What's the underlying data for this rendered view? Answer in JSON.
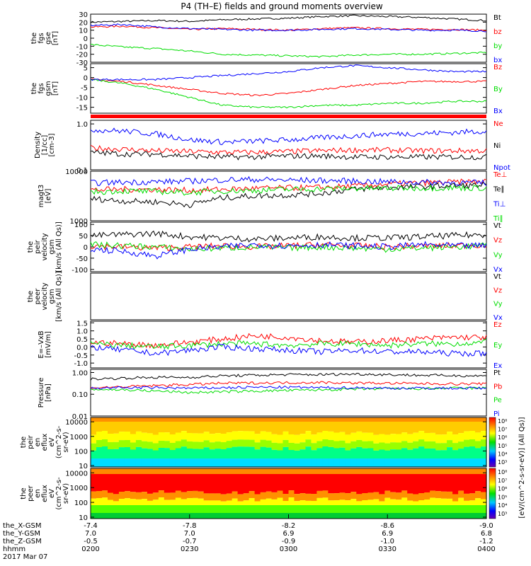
{
  "title": "P4 (TH–E) fields and ground moments overview",
  "colors": {
    "black": "#000000",
    "red": "#ff0000",
    "green": "#00dd00",
    "blue": "#0000ff"
  },
  "chart_data": [
    {
      "id": "fgs-gse",
      "type": "line",
      "ylabel": [
        "the",
        "fgs",
        "gse",
        "[nT]"
      ],
      "ylim": [
        -30,
        30
      ],
      "scale": "linear",
      "ticks": [
        "30",
        "20",
        "10",
        "0",
        "-10",
        "-20",
        "-30"
      ],
      "tick_values": [
        30,
        20,
        10,
        0,
        -10,
        -20,
        -30
      ],
      "series": [
        {
          "name": "Bt",
          "color": "black",
          "values": [
            20,
            21,
            22,
            21,
            23,
            24,
            25,
            27,
            28,
            27,
            26,
            24,
            22
          ]
        },
        {
          "name": "bz",
          "color": "red",
          "values": [
            14,
            15,
            13,
            11,
            12,
            11,
            10,
            12,
            13,
            12,
            11,
            11,
            10
          ]
        },
        {
          "name": "by",
          "color": "green",
          "values": [
            -8,
            -11,
            -13,
            -16,
            -20,
            -21,
            -22,
            -23,
            -21,
            -20,
            -20,
            -19,
            -18
          ]
        },
        {
          "name": "bx",
          "color": "blue",
          "values": [
            16,
            17,
            14,
            12,
            11,
            10,
            10,
            11,
            12,
            11,
            10,
            10,
            9
          ]
        }
      ]
    },
    {
      "id": "fgs-gsm",
      "type": "line",
      "ylabel": [
        "the",
        "fgs",
        "gsm",
        "[nT]"
      ],
      "ylim": [
        -18,
        7
      ],
      "scale": "linear",
      "ticks": [
        "5",
        "0",
        "-5",
        "-10",
        "-15"
      ],
      "tick_values": [
        5,
        0,
        -5,
        -10,
        -15
      ],
      "series": [
        {
          "name": "Bz",
          "color": "red",
          "values": [
            -1,
            -2,
            -4,
            -6,
            -8,
            -9,
            -8,
            -6,
            -4,
            -3,
            -2,
            -2,
            -2
          ]
        },
        {
          "name": "By",
          "color": "green",
          "values": [
            -1,
            -3,
            -6,
            -10,
            -14,
            -15,
            -15,
            -14,
            -14,
            -13,
            -13,
            -12,
            -12
          ]
        },
        {
          "name": "Bx",
          "color": "blue",
          "values": [
            -1,
            -1,
            -1,
            0,
            1,
            2,
            3,
            5,
            6,
            5,
            4,
            3,
            3
          ]
        }
      ]
    },
    {
      "id": "density",
      "type": "line",
      "ylabel": [
        "Density",
        "[1/cc]",
        "[cm-3]"
      ],
      "ylim": [
        0.1,
        1.2
      ],
      "scale": "log",
      "ticks": [
        "1.0",
        "0.1"
      ],
      "tick_values": [
        1.0,
        0.1
      ],
      "series": [
        {
          "name": "Ne",
          "color": "red",
          "values": [
            0.3,
            0.28,
            0.26,
            0.25,
            0.24,
            0.24,
            0.25,
            0.26,
            0.27,
            0.27,
            0.26,
            0.26,
            0.26
          ]
        },
        {
          "name": "Ni",
          "color": "black",
          "values": [
            0.24,
            0.22,
            0.22,
            0.2,
            0.19,
            0.19,
            0.2,
            0.2,
            0.19,
            0.19,
            0.19,
            0.19,
            0.19
          ]
        },
        {
          "name": "Npot",
          "color": "blue",
          "values": [
            0.75,
            0.7,
            0.6,
            0.45,
            0.4,
            0.42,
            0.45,
            0.5,
            0.55,
            0.6,
            0.62,
            0.65,
            0.7
          ]
        }
      ]
    },
    {
      "id": "temperature",
      "type": "line",
      "ylabel": [
        "magt3",
        "[eV]"
      ],
      "ylim": [
        1000,
        10000
      ],
      "scale": "log",
      "ticks": [
        "10000",
        "1000"
      ],
      "tick_values": [
        10000,
        1000
      ],
      "series": [
        {
          "name": "Te⊥",
          "color": "red",
          "values": [
            4200,
            4300,
            4300,
            4100,
            4300,
            4500,
            4600,
            4700,
            5000,
            5500,
            5800,
            6000,
            6200
          ]
        },
        {
          "name": "Te∥",
          "color": "black",
          "values": [
            2800,
            2500,
            2400,
            2100,
            2900,
            3200,
            3300,
            3600,
            4300,
            4700,
            4900,
            5100,
            5200
          ]
        },
        {
          "name": "Ti⊥",
          "color": "blue",
          "values": [
            5800,
            6000,
            6100,
            6300,
            6700,
            6800,
            6600,
            6500,
            6300,
            6100,
            6000,
            5900,
            5800
          ]
        },
        {
          "name": "Ti∥",
          "color": "green",
          "values": [
            3800,
            4000,
            3900,
            3700,
            4000,
            4100,
            4300,
            4400,
            4500,
            4500,
            4600,
            4600,
            4600
          ]
        }
      ]
    },
    {
      "id": "peir-velocity",
      "type": "line",
      "ylabel": [
        "the",
        "peir",
        "velocity",
        "gsm",
        "[km/s (All Qs)]"
      ],
      "ylim": [
        -110,
        110
      ],
      "scale": "linear",
      "ticks": [
        "100",
        "50",
        "0",
        "-50",
        "-100"
      ],
      "tick_values": [
        100,
        50,
        0,
        -50,
        -100
      ],
      "series": [
        {
          "name": "Vt",
          "color": "black",
          "values": [
            50,
            55,
            60,
            45,
            40,
            35,
            40,
            45,
            40,
            40,
            45,
            50,
            55
          ]
        },
        {
          "name": "Vz",
          "color": "red",
          "values": [
            5,
            0,
            -5,
            0,
            5,
            0,
            5,
            10,
            5,
            0,
            5,
            5,
            10
          ]
        },
        {
          "name": "Vy",
          "color": "green",
          "values": [
            10,
            5,
            0,
            -10,
            -5,
            0,
            -5,
            0,
            -5,
            -10,
            -5,
            0,
            5
          ]
        },
        {
          "name": "Vx",
          "color": "blue",
          "values": [
            -10,
            -20,
            -40,
            -10,
            0,
            10,
            5,
            10,
            5,
            0,
            10,
            5,
            5
          ]
        }
      ]
    },
    {
      "id": "peer-velocity",
      "type": "line",
      "ylabel": [
        "the",
        "peer",
        "velocity",
        "gsm",
        "[km/s (All Qs)]"
      ],
      "ylim": [
        -110,
        110
      ],
      "scale": "linear",
      "ticks": [],
      "tick_values": [],
      "series": [
        {
          "name": "Vt",
          "color": "black",
          "values": []
        },
        {
          "name": "Vz",
          "color": "red",
          "values": []
        },
        {
          "name": "Vy",
          "color": "green",
          "values": []
        },
        {
          "name": "Vx",
          "color": "blue",
          "values": []
        }
      ]
    },
    {
      "id": "efield",
      "type": "line",
      "ylabel": [
        "E=–VxB",
        "[mV/m]"
      ],
      "ylim": [
        -1.3,
        1.6
      ],
      "scale": "linear",
      "ticks": [
        "1.5",
        "1.0",
        "0.5",
        "0.0",
        "-0.5",
        "-1.0"
      ],
      "tick_values": [
        1.5,
        1.0,
        0.5,
        0.0,
        -0.5,
        -1.0
      ],
      "series": [
        {
          "name": "Ez",
          "color": "red",
          "values": [
            0.3,
            0.2,
            0.1,
            0.3,
            0.5,
            0.7,
            0.6,
            0.4,
            0.3,
            0.4,
            0.5,
            0.6,
            0.6
          ]
        },
        {
          "name": "Ey",
          "color": "green",
          "values": [
            0.2,
            0.1,
            0.0,
            0.1,
            0.2,
            0.2,
            0.1,
            0.2,
            0.2,
            0.1,
            0.2,
            0.2,
            0.3
          ]
        },
        {
          "name": "Ex",
          "color": "blue",
          "values": [
            0.0,
            -0.2,
            -0.4,
            -0.2,
            0.0,
            -0.1,
            -0.2,
            -0.3,
            -0.2,
            -0.3,
            -0.3,
            -0.4,
            -0.4
          ]
        }
      ]
    },
    {
      "id": "pressure",
      "type": "line",
      "ylabel": [
        "Pressure",
        "[nPa]"
      ],
      "ylim": [
        0.01,
        1.4
      ],
      "scale": "log",
      "ticks": [
        "1.00",
        "0.10",
        "0.01"
      ],
      "tick_values": [
        1.0,
        0.1,
        0.01
      ],
      "series": [
        {
          "name": "Pt",
          "color": "black",
          "values": [
            0.5,
            0.55,
            0.6,
            0.6,
            0.7,
            0.75,
            0.8,
            0.8,
            0.85,
            0.8,
            0.75,
            0.72,
            0.7
          ]
        },
        {
          "name": "Pb",
          "color": "red",
          "values": [
            0.2,
            0.22,
            0.25,
            0.28,
            0.32,
            0.33,
            0.34,
            0.35,
            0.33,
            0.32,
            0.31,
            0.3,
            0.3
          ]
        },
        {
          "name": "Pe",
          "color": "green",
          "values": [
            0.17,
            0.16,
            0.14,
            0.12,
            0.13,
            0.14,
            0.15,
            0.16,
            0.17,
            0.18,
            0.18,
            0.19,
            0.19
          ]
        },
        {
          "name": "Pi",
          "color": "blue",
          "values": [
            0.19,
            0.2,
            0.2,
            0.19,
            0.2,
            0.21,
            0.21,
            0.2,
            0.2,
            0.19,
            0.19,
            0.19,
            0.19
          ]
        }
      ]
    },
    {
      "id": "peir-eflux",
      "type": "heatmap",
      "ylabel": [
        "the",
        "peir",
        "en",
        "eflux",
        "eV",
        "(cm^2-s-",
        "sr-eV)"
      ],
      "ylim": [
        8,
        20000
      ],
      "scale": "log",
      "ticks": [
        "10000",
        "1000",
        "100",
        "10"
      ],
      "tick_values": [
        10000,
        1000,
        100,
        10
      ]
    },
    {
      "id": "peer-eflux",
      "type": "heatmap",
      "ylabel": [
        "the",
        "peer",
        "en",
        "eflux",
        "eV",
        "(cm^2-s-",
        "sr-eV)"
      ],
      "ylim": [
        8,
        20000
      ],
      "scale": "log",
      "ticks": [
        "10000",
        "1000",
        "100",
        "10"
      ],
      "tick_values": [
        10000,
        1000,
        100,
        10
      ]
    }
  ],
  "colorbar": {
    "label": "[eV/(cm^2-s-sr-eV)] (All Qs)]",
    "ticks": [
      "10^8",
      "10^7",
      "10^6",
      "10^5",
      "10^4",
      "10^3"
    ]
  },
  "time_axis": {
    "rows": [
      {
        "label": "the_X-GSM",
        "values": [
          "-7.4",
          "-7.8",
          "-8.2",
          "-8.6",
          "-9.0"
        ]
      },
      {
        "label": "the_Y-GSM",
        "values": [
          "7.0",
          "7.0",
          "6.9",
          "6.9",
          "6.8"
        ]
      },
      {
        "label": "the_Z-GSM",
        "values": [
          "-0.5",
          "-0.7",
          "-0.9",
          "-1.0",
          "-1.2"
        ]
      },
      {
        "label": "hhmm",
        "values": [
          "0200",
          "0230",
          "0300",
          "0330",
          "0400"
        ]
      }
    ],
    "date": "2017 Mar 07"
  }
}
